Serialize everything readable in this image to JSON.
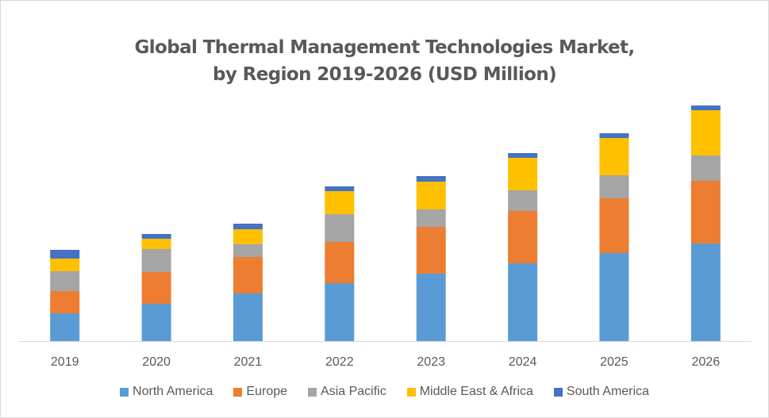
{
  "chart_data": {
    "type": "bar",
    "stacked": true,
    "title": "Global Thermal Management Technologies Market,",
    "subtitle": "by Region 2019-2026 (USD Million)",
    "xlabel": "",
    "ylabel": "",
    "y_axis_visible": false,
    "gridlines": false,
    "legend_position": "bottom",
    "value_note": "No y-axis shown; values are relative estimates from bar heights",
    "ylim": [
      0,
      300
    ],
    "categories": [
      "2019",
      "2020",
      "2021",
      "2022",
      "2023",
      "2024",
      "2025",
      "2026"
    ],
    "series": [
      {
        "name": "North America",
        "color": "#5B9BD5",
        "values": [
          35,
          47,
          60,
          73,
          85,
          98,
          111,
          123
        ]
      },
      {
        "name": "Europe",
        "color": "#ED7D31",
        "values": [
          28,
          40,
          46,
          52,
          59,
          66,
          69,
          79
        ]
      },
      {
        "name": "Asia Pacific",
        "color": "#A5A5A5",
        "values": [
          25,
          29,
          16,
          35,
          22,
          26,
          29,
          32
        ]
      },
      {
        "name": "Middle East & Africa",
        "color": "#FFC000",
        "values": [
          16,
          13,
          19,
          29,
          35,
          41,
          47,
          57
        ]
      },
      {
        "name": "South America",
        "color": "#4472C4",
        "values": [
          11,
          6,
          7,
          6,
          7,
          6,
          6,
          6
        ]
      }
    ]
  }
}
